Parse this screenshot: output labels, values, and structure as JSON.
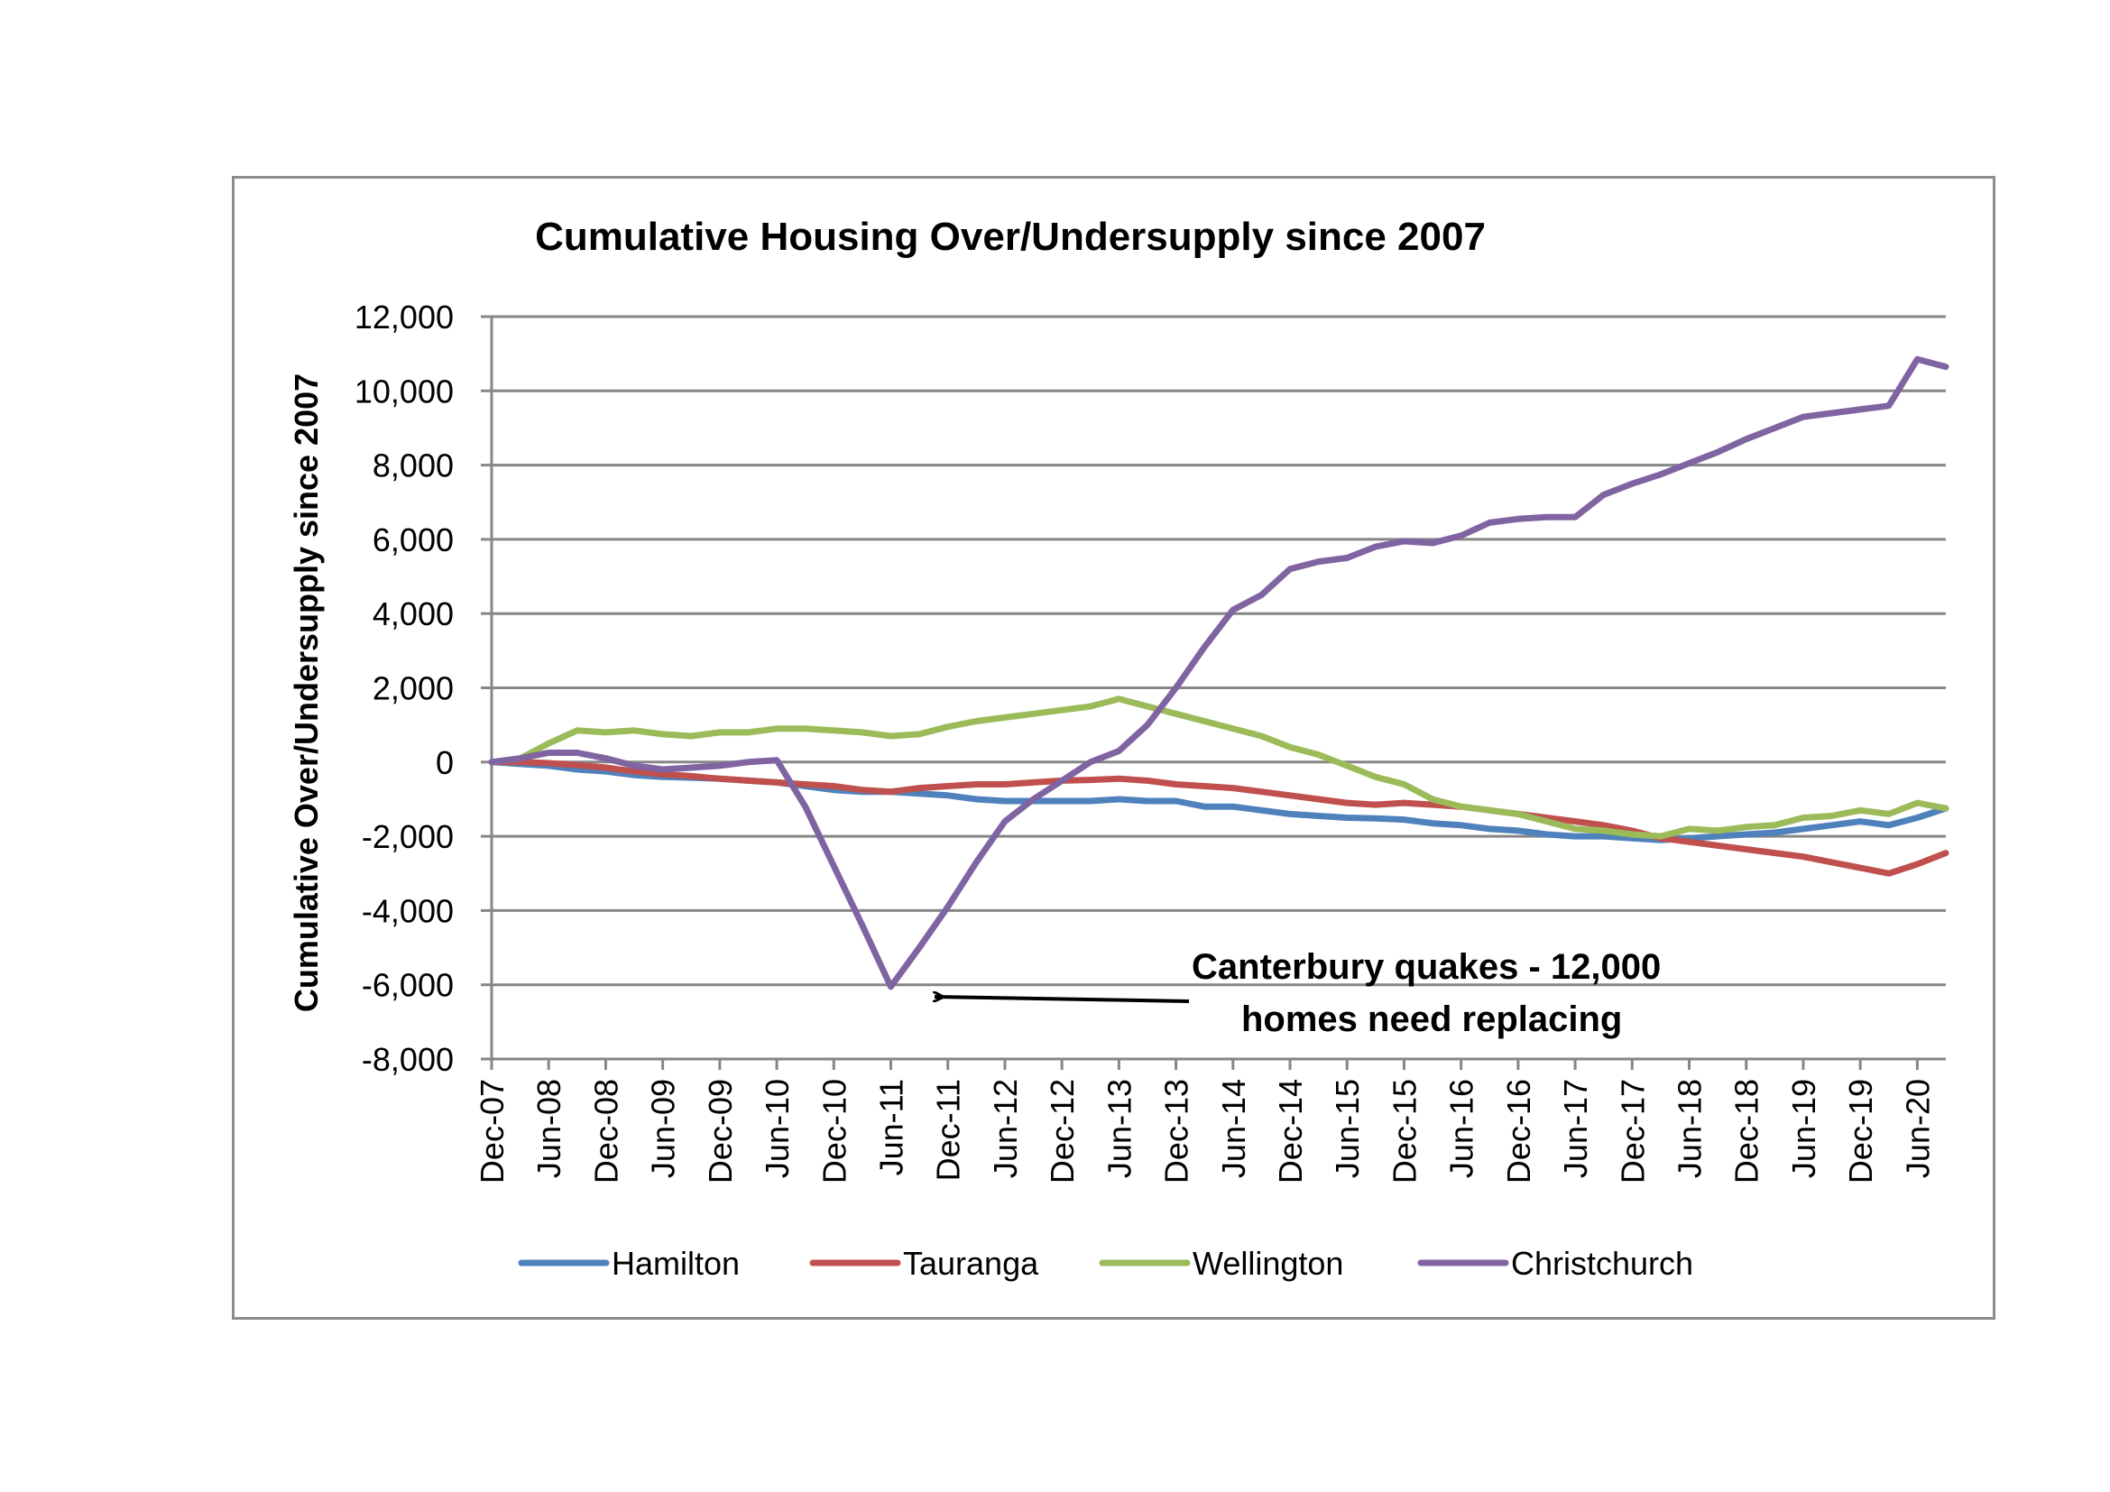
{
  "chart_data": {
    "type": "line",
    "title": "Cumulative Housing Over/Undersupply since 2007",
    "xlabel": "",
    "ylabel": "Cumulative Over/Undersupply since 2007",
    "ylim": [
      -8000,
      12000
    ],
    "y_ticks": [
      12000,
      10000,
      8000,
      6000,
      4000,
      2000,
      0,
      -2000,
      -4000,
      -6000,
      -8000
    ],
    "y_tick_labels": [
      "12,000",
      "10,000",
      "8,000",
      "6,000",
      "4,000",
      "2,000",
      "0",
      "-2,000",
      "-4,000",
      "-6,000",
      "-8,000"
    ],
    "grid": true,
    "legend_position": "bottom",
    "x_tick_labels": [
      "Dec-07",
      "Jun-08",
      "Dec-08",
      "Jun-09",
      "Dec-09",
      "Jun-10",
      "Dec-10",
      "Jun-11",
      "Dec-11",
      "Jun-12",
      "Dec-12",
      "Jun-13",
      "Dec-13",
      "Jun-14",
      "Dec-14",
      "Jun-15",
      "Dec-15",
      "Jun-16",
      "Dec-16",
      "Jun-17",
      "Dec-17",
      "Jun-18",
      "Dec-18",
      "Jun-19",
      "Dec-19",
      "Jun-20"
    ],
    "x": [
      "Dec-07",
      "Mar-08",
      "Jun-08",
      "Sep-08",
      "Dec-08",
      "Mar-09",
      "Jun-09",
      "Sep-09",
      "Dec-09",
      "Mar-10",
      "Jun-10",
      "Sep-10",
      "Dec-10",
      "Mar-11",
      "Jun-11",
      "Sep-11",
      "Dec-11",
      "Mar-12",
      "Jun-12",
      "Sep-12",
      "Dec-12",
      "Mar-13",
      "Jun-13",
      "Sep-13",
      "Dec-13",
      "Mar-14",
      "Jun-14",
      "Sep-14",
      "Dec-14",
      "Mar-15",
      "Jun-15",
      "Sep-15",
      "Dec-15",
      "Mar-16",
      "Jun-16",
      "Sep-16",
      "Dec-16",
      "Mar-17",
      "Jun-17",
      "Sep-17",
      "Dec-17",
      "Mar-18",
      "Jun-18",
      "Sep-18",
      "Dec-18",
      "Mar-19",
      "Jun-19",
      "Sep-19",
      "Dec-19",
      "Mar-20",
      "Jun-20",
      "Sep-20"
    ],
    "series": [
      {
        "name": "Hamilton",
        "color": "#4f81bd",
        "values": [
          0,
          -50,
          -100,
          -200,
          -250,
          -350,
          -400,
          -420,
          -450,
          -500,
          -550,
          -650,
          -750,
          -800,
          -800,
          -850,
          -900,
          -1000,
          -1050,
          -1050,
          -1050,
          -1050,
          -1000,
          -1050,
          -1050,
          -1200,
          -1200,
          -1300,
          -1400,
          -1450,
          -1500,
          -1520,
          -1550,
          -1650,
          -1700,
          -1800,
          -1850,
          -1950,
          -2000,
          -2000,
          -2050,
          -2100,
          -2050,
          -2000,
          -1950,
          -1900,
          -1800,
          -1700,
          -1600,
          -1700,
          -1500,
          -1250
        ]
      },
      {
        "name": "Tauranga",
        "color": "#c0504d",
        "values": [
          0,
          0,
          -30,
          -80,
          -150,
          -250,
          -330,
          -380,
          -450,
          -500,
          -550,
          -600,
          -650,
          -750,
          -800,
          -700,
          -650,
          -600,
          -600,
          -550,
          -500,
          -480,
          -450,
          -500,
          -600,
          -650,
          -700,
          -800,
          -900,
          -1000,
          -1100,
          -1150,
          -1100,
          -1150,
          -1200,
          -1300,
          -1400,
          -1500,
          -1600,
          -1700,
          -1850,
          -2050,
          -2150,
          -2250,
          -2350,
          -2450,
          -2550,
          -2700,
          -2850,
          -3000,
          -2750,
          -2450
        ]
      },
      {
        "name": "Wellington",
        "color": "#9bbb59",
        "values": [
          0,
          100,
          500,
          850,
          800,
          850,
          750,
          700,
          800,
          800,
          900,
          900,
          850,
          800,
          700,
          750,
          950,
          1100,
          1200,
          1300,
          1400,
          1500,
          1700,
          1500,
          1300,
          1100,
          900,
          700,
          400,
          200,
          -100,
          -400,
          -600,
          -1000,
          -1200,
          -1300,
          -1400,
          -1600,
          -1800,
          -1850,
          -1950,
          -2000,
          -1800,
          -1850,
          -1750,
          -1700,
          -1500,
          -1450,
          -1300,
          -1400,
          -1100,
          -1250
        ]
      },
      {
        "name": "Christchurch",
        "color": "#8064a2",
        "values": [
          0,
          100,
          250,
          250,
          100,
          -100,
          -200,
          -150,
          -100,
          0,
          50,
          -1200,
          -2800,
          -4400,
          -6050,
          -5000,
          -3900,
          -2700,
          -1600,
          -1000,
          -500,
          0,
          300,
          1000,
          2000,
          3100,
          4100,
          4500,
          5200,
          5400,
          5500,
          5800,
          5950,
          5900,
          6100,
          6450,
          6550,
          6600,
          6600,
          7200,
          7500,
          7750,
          8050,
          8350,
          8700,
          9000,
          9300,
          9400,
          9500,
          9600,
          10850,
          10650
        ]
      }
    ],
    "annotation": {
      "line1": "Canterbury quakes - 12,000",
      "line2": "homes need replacing",
      "x": "Jun-11",
      "y": -6000
    }
  }
}
